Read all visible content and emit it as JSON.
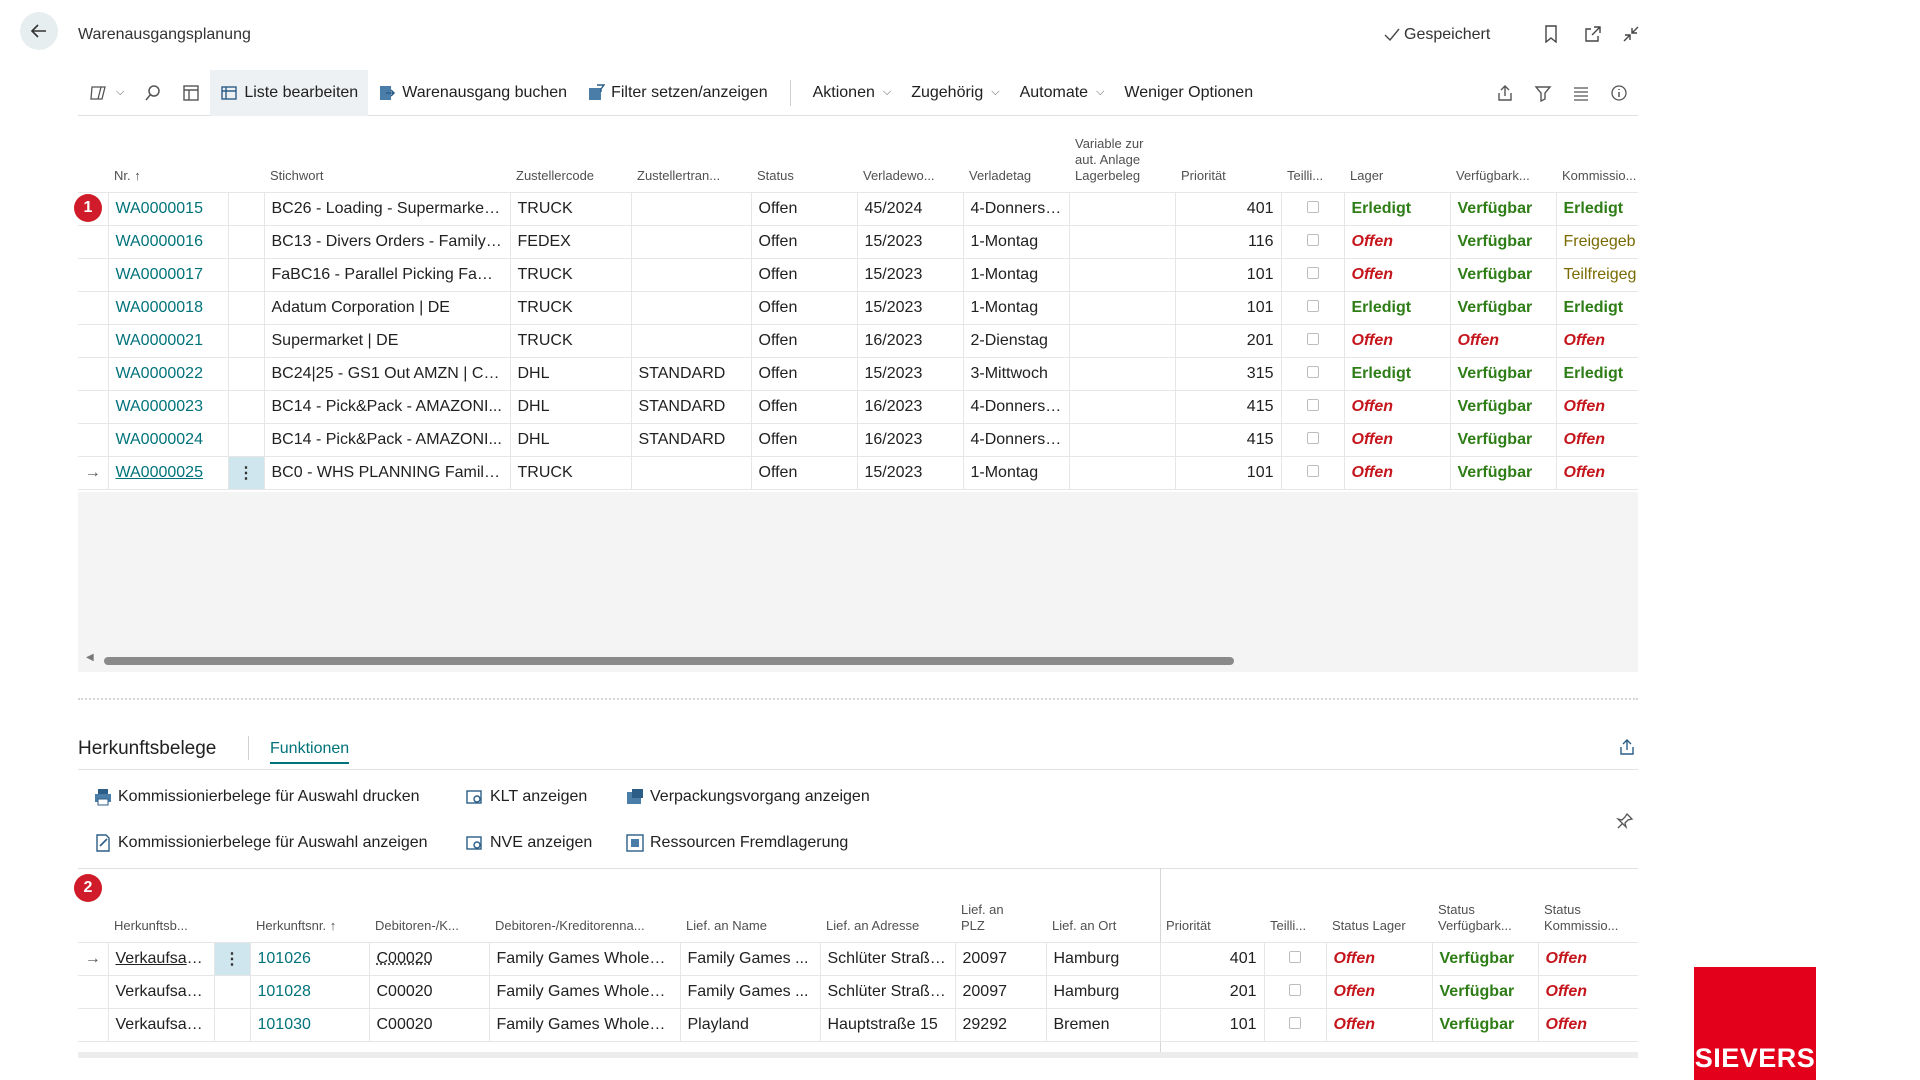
{
  "header": {
    "title": "Warenausgangsplanung",
    "saved_label": "Gespeichert"
  },
  "actionbar": {
    "edit_list": "Liste bearbeiten",
    "post_shipment": "Warenausgang buchen",
    "filter": "Filter setzen/anzeigen",
    "actions": "Aktionen",
    "related": "Zugehörig",
    "automate": "Automate",
    "fewer": "Weniger Optionen"
  },
  "badges": {
    "one": "1",
    "two": "2"
  },
  "top_table": {
    "columns": {
      "nr": "Nr.",
      "keyword": "Stichwort",
      "carrier": "Zustellercode",
      "carrier_service": "Zustellertran...",
      "status": "Status",
      "load_week": "Verladewo...",
      "load_day": "Verladetag",
      "variable_l1": "Variable zur",
      "variable_l2": "aut. Anlage",
      "variable_l3": "Lagerbeleg",
      "priority": "Priorität",
      "partial": "Teilli...",
      "warehouse": "Lager",
      "availability": "Verfügbark...",
      "picking": "Kommissio..."
    },
    "rows": [
      {
        "nr": "WA0000015",
        "keyword": "BC26 - Loading - Supermarket ...",
        "carrier": "TRUCK",
        "service": "",
        "status": "Offen",
        "week": "45/2024",
        "day": "4-Donnerst...",
        "priority": "401",
        "lager": "Erledigt",
        "avail": "Verfügbar",
        "pick": "Erledigt"
      },
      {
        "nr": "WA0000016",
        "keyword": "BC13 - Divers Orders - Family ...",
        "carrier": "FEDEX",
        "service": "",
        "status": "Offen",
        "week": "15/2023",
        "day": "1-Montag",
        "priority": "116",
        "lager": "Offen",
        "avail": "Verfügbar",
        "pick": "Freigegeb"
      },
      {
        "nr": "WA0000017",
        "keyword": "FaBC16 - Parallel Picking Famil...",
        "carrier": "TRUCK",
        "service": "",
        "status": "Offen",
        "week": "15/2023",
        "day": "1-Montag",
        "priority": "101",
        "lager": "Offen",
        "avail": "Verfügbar",
        "pick": "Teilfreigeg"
      },
      {
        "nr": "WA0000018",
        "keyword": "Adatum Corporation | DE",
        "carrier": "TRUCK",
        "service": "",
        "status": "Offen",
        "week": "15/2023",
        "day": "1-Montag",
        "priority": "101",
        "lager": "Erledigt",
        "avail": "Verfügbar",
        "pick": "Erledigt"
      },
      {
        "nr": "WA0000021",
        "keyword": "Supermarket  | DE",
        "carrier": "TRUCK",
        "service": "",
        "status": "Offen",
        "week": "16/2023",
        "day": "2-Dienstag",
        "priority": "201",
        "lager": "Offen",
        "avail": "Offen",
        "pick": "Offen"
      },
      {
        "nr": "WA0000022",
        "keyword": "BC24|25 - GS1 Out AMZN | Car...",
        "carrier": "DHL",
        "service": "STANDARD",
        "status": "Offen",
        "week": "15/2023",
        "day": "3-Mittwoch",
        "priority": "315",
        "lager": "Erledigt",
        "avail": "Verfügbar",
        "pick": "Erledigt"
      },
      {
        "nr": "WA0000023",
        "keyword": "BC14 - Pick&Pack - AMAZONI...",
        "carrier": "DHL",
        "service": "STANDARD",
        "status": "Offen",
        "week": "16/2023",
        "day": "4-Donnerst...",
        "priority": "415",
        "lager": "Offen",
        "avail": "Verfügbar",
        "pick": "Offen"
      },
      {
        "nr": "WA0000024",
        "keyword": "BC14 - Pick&Pack - AMAZONI...",
        "carrier": "DHL",
        "service": "STANDARD",
        "status": "Offen",
        "week": "16/2023",
        "day": "4-Donnerst...",
        "priority": "415",
        "lager": "Offen",
        "avail": "Verfügbar",
        "pick": "Offen"
      },
      {
        "nr": "WA0000025",
        "keyword": "BC0 - WHS PLANNING Family ...",
        "carrier": "TRUCK",
        "service": "",
        "status": "Offen",
        "week": "15/2023",
        "day": "1-Montag",
        "priority": "101",
        "lager": "Offen",
        "avail": "Verfügbar",
        "pick": "Offen"
      }
    ]
  },
  "lower": {
    "title": "Herkunftsbelege",
    "tab": "Funktionen",
    "functions": {
      "print_picks": "Kommissionierbelege für Auswahl drucken",
      "show_klt": "KLT anzeigen",
      "show_packing": "Verpackungsvorgang anzeigen",
      "show_picks": "Kommissionierbelege für Auswahl anzeigen",
      "show_nve": "NVE anzeigen",
      "external_storage": "Ressourcen Fremdlagerung"
    },
    "columns": {
      "source_doc": "Herkunftsb...",
      "source_no": "Herkunftsnr.",
      "debtor_no": "Debitoren-/K...",
      "debtor_name": "Debitoren-/Kreditorenna...",
      "ship_name": "Lief. an Name",
      "ship_addr": "Lief. an Adresse",
      "ship_zip_l1": "Lief. an",
      "ship_zip_l2": "PLZ",
      "ship_city": "Lief. an Ort",
      "priority": "Priorität",
      "partial": "Teilli...",
      "status_lager": "Status Lager",
      "status_avail_l1": "Status",
      "status_avail_l2": "Verfügbark...",
      "status_pick_l1": "Status",
      "status_pick_l2": "Kommissio..."
    },
    "rows": [
      {
        "doc": "Verkaufsau...",
        "no": "101026",
        "debtor": "C00020",
        "dname": "Family Games Wholesa...",
        "sname": "Family Games ...",
        "addr": "Schlüter Straße...",
        "zip": "20097",
        "city": "Hamburg",
        "priority": "401",
        "lager": "Offen",
        "avail": "Verfügbar",
        "pick": "Offen"
      },
      {
        "doc": "Verkaufsau...",
        "no": "101028",
        "debtor": "C00020",
        "dname": "Family Games Wholesa...",
        "sname": "Family Games ...",
        "addr": "Schlüter Straße...",
        "zip": "20097",
        "city": "Hamburg",
        "priority": "201",
        "lager": "Offen",
        "avail": "Verfügbar",
        "pick": "Offen"
      },
      {
        "doc": "Verkaufsau...",
        "no": "101030",
        "debtor": "C00020",
        "dname": "Family Games Wholesa...",
        "sname": "Playland",
        "addr": "Hauptstraße 15",
        "zip": "29292",
        "city": "Bremen",
        "priority": "101",
        "lager": "Offen",
        "avail": "Verfügbar",
        "pick": "Offen"
      }
    ]
  },
  "logo": "SIEVERS",
  "colors": {
    "accent": "#00737a",
    "done": "#2e7d16",
    "open": "#c4161c",
    "brand": "#e2001a"
  }
}
